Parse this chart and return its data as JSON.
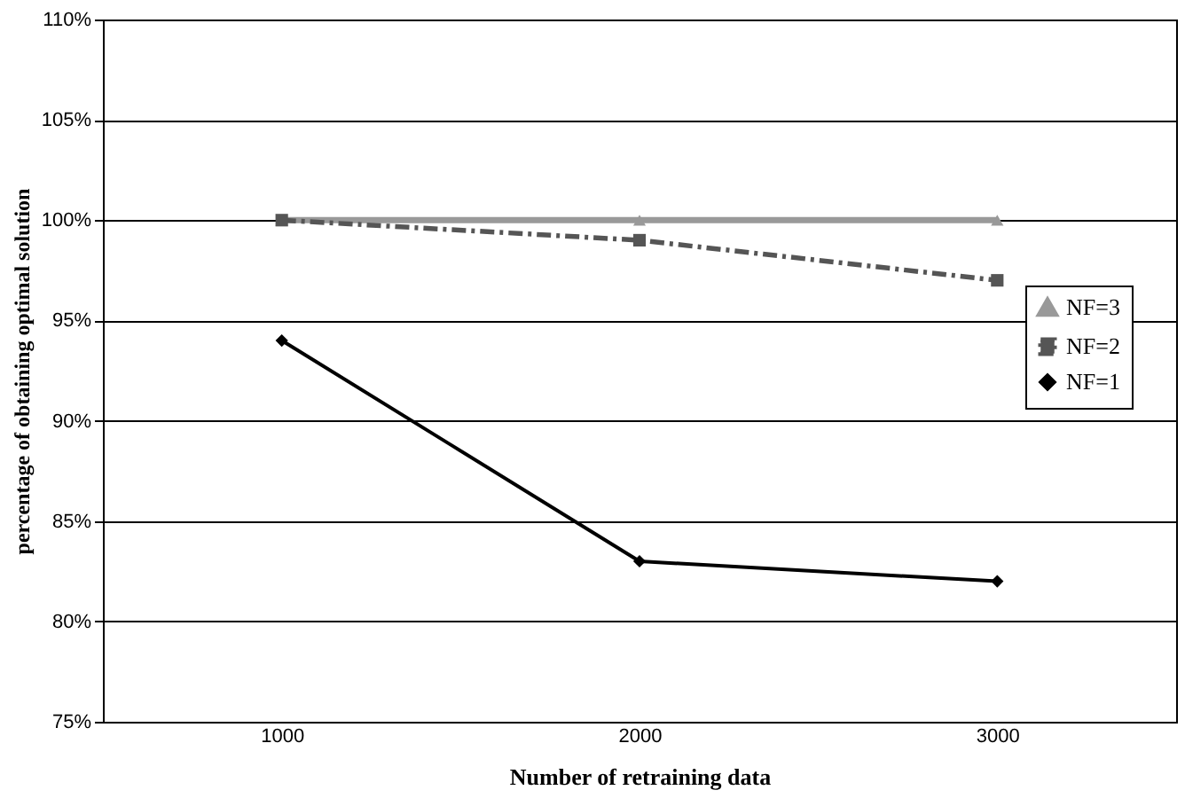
{
  "chart_data": {
    "type": "line",
    "xlabel": "Number of retraining data",
    "ylabel": "percentage of obtaining optimal solution",
    "categories": [
      "1000",
      "2000",
      "3000"
    ],
    "series": [
      {
        "name": "NF=3",
        "color": "#999999",
        "values": [
          100,
          100,
          100
        ],
        "marker": "triangle",
        "line_style": "solid"
      },
      {
        "name": "NF=2",
        "color": "#555555",
        "values": [
          100,
          99,
          97
        ],
        "marker": "square",
        "line_style": "dashed"
      },
      {
        "name": "NF=1",
        "color": "#000000",
        "values": [
          94,
          83,
          82
        ],
        "marker": "diamond",
        "line_style": "solid"
      }
    ],
    "ylim": [
      75,
      110
    ],
    "yticks": [
      {
        "value": 75,
        "label": "75%"
      },
      {
        "value": 80,
        "label": "80%"
      },
      {
        "value": 85,
        "label": "85%"
      },
      {
        "value": 90,
        "label": "90%"
      },
      {
        "value": 95,
        "label": "95%"
      },
      {
        "value": 100,
        "label": "100%"
      },
      {
        "value": 105,
        "label": "105%"
      },
      {
        "value": 110,
        "label": "110%"
      }
    ],
    "grid": "y",
    "legend": "right"
  }
}
